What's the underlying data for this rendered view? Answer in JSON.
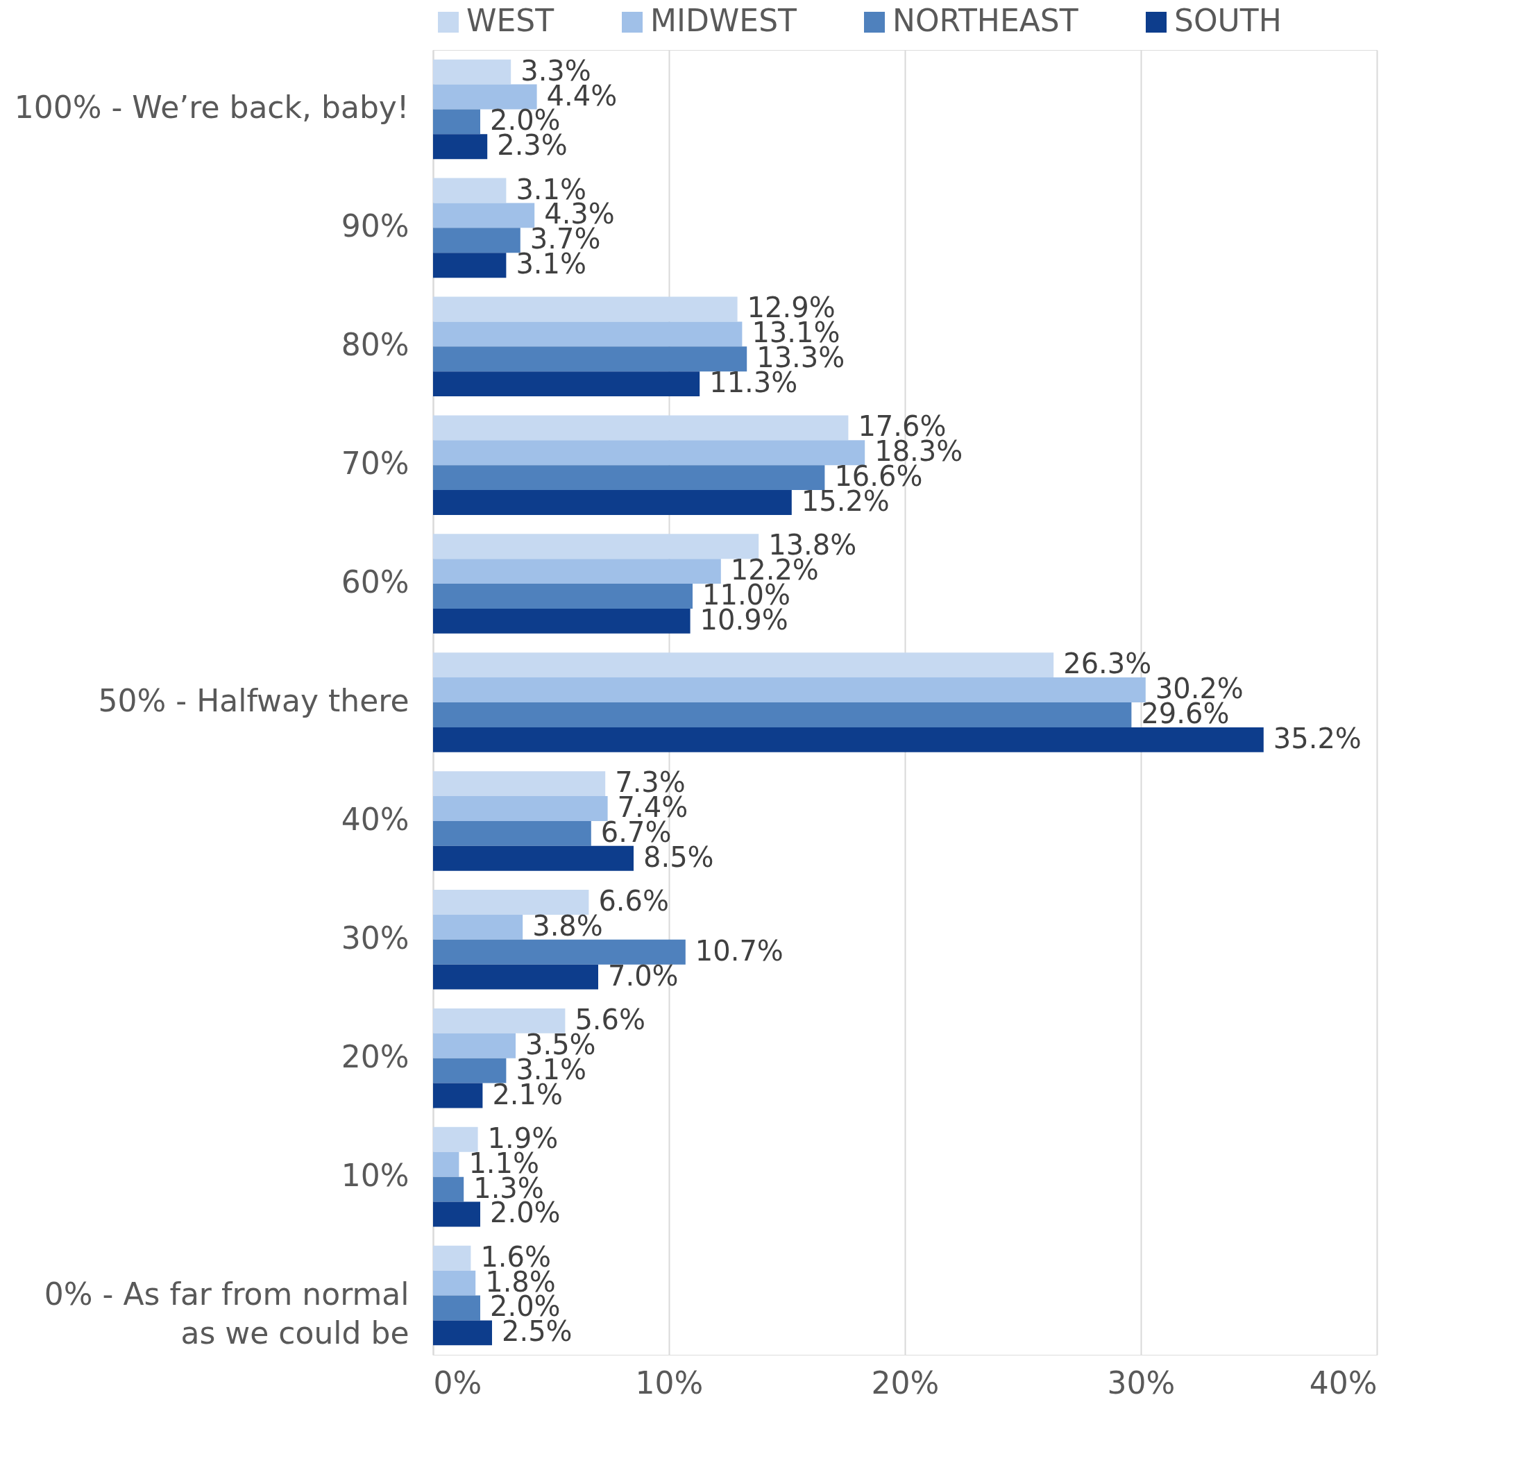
{
  "chart_data": {
    "type": "bar",
    "orientation": "horizontal",
    "categories": [
      "100% - We’re back, baby!",
      "90%",
      "80%",
      "70%",
      "60%",
      "50% - Halfway there",
      "40%",
      "30%",
      "20%",
      "10%",
      "0% - As far from normal as we could be"
    ],
    "series": [
      {
        "name": "WEST",
        "color": "#c6d9f1",
        "values": [
          3.3,
          3.1,
          12.9,
          17.6,
          13.8,
          26.3,
          7.3,
          6.6,
          5.6,
          1.9,
          1.6
        ],
        "value_labels": [
          "3.3%",
          "3.1%",
          "12.9%",
          "17.6%",
          "13.8%",
          "26.3%",
          "7.3%",
          "6.6%",
          "5.6%",
          "1.9%",
          "1.6%"
        ]
      },
      {
        "name": "MIDWEST",
        "color": "#a0c0e8",
        "values": [
          4.4,
          4.3,
          13.1,
          18.3,
          12.2,
          30.2,
          7.4,
          3.8,
          3.5,
          1.1,
          1.8
        ],
        "value_labels": [
          "4.4%",
          "4.3%",
          "13.1%",
          "18.3%",
          "12.2%",
          "30.2%",
          "7.4%",
          "3.8%",
          "3.5%",
          "1.1%",
          "1.8%"
        ]
      },
      {
        "name": "NORTHEAST",
        "color": "#4f81bd",
        "values": [
          2.0,
          3.7,
          13.3,
          16.6,
          11.0,
          29.6,
          6.7,
          10.7,
          3.1,
          1.3,
          2.0
        ],
        "value_labels": [
          "2.0%",
          "3.7%",
          "13.3%",
          "16.6%",
          "11.0%",
          "29.6%",
          "6.7%",
          "10.7%",
          "3.1%",
          "1.3%",
          "2.0%"
        ]
      },
      {
        "name": "SOUTH",
        "color": "#0d3d8c",
        "values": [
          2.3,
          3.1,
          11.3,
          15.2,
          10.9,
          35.2,
          8.5,
          7.0,
          2.1,
          2.0,
          2.5
        ],
        "value_labels": [
          "2.3%",
          "3.1%",
          "11.3%",
          "15.2%",
          "10.9%",
          "35.2%",
          "8.5%",
          "7.0%",
          "2.1%",
          "2.0%",
          "2.5%"
        ]
      }
    ],
    "xlim": [
      0,
      40
    ],
    "xticks": [
      {
        "value": 0,
        "label": "0%"
      },
      {
        "value": 10,
        "label": "10%"
      },
      {
        "value": 20,
        "label": "20%"
      },
      {
        "value": 30,
        "label": "30%"
      },
      {
        "value": 40,
        "label": "40%"
      }
    ],
    "grid": "x",
    "legend": "top"
  }
}
